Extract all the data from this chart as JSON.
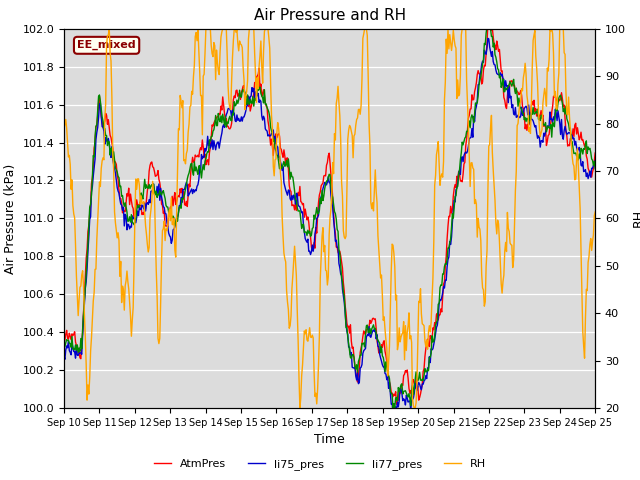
{
  "title": "Air Pressure and RH",
  "xlabel": "Time",
  "ylabel_left": "Air Pressure (kPa)",
  "ylabel_right": "RH",
  "ylim_left": [
    100.0,
    102.0
  ],
  "ylim_right": [
    20,
    100
  ],
  "yticks_left": [
    100.0,
    100.2,
    100.4,
    100.6,
    100.8,
    101.0,
    101.2,
    101.4,
    101.6,
    101.8,
    102.0
  ],
  "yticks_right": [
    20,
    30,
    40,
    50,
    60,
    70,
    80,
    90,
    100
  ],
  "annotation": "EE_mixed",
  "annotation_color": "#8B0000",
  "annotation_bg": "#FFFFF0",
  "bg_color": "#DCDCDC",
  "series_colors": {
    "AtmPres": "#FF0000",
    "li75_pres": "#0000CC",
    "li77_pres": "#008800",
    "RH": "#FFA500"
  },
  "linewidth": 1.0
}
